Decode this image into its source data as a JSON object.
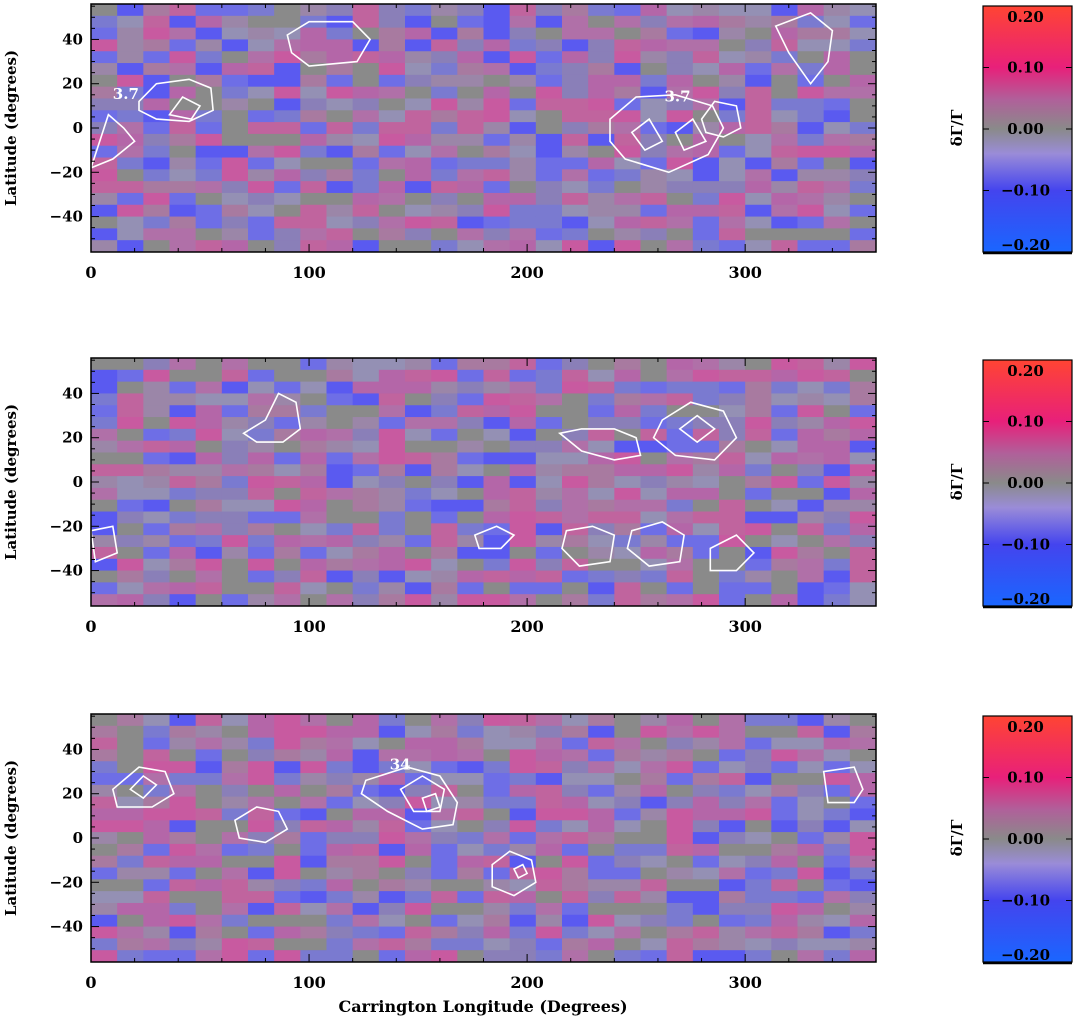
{
  "figure": {
    "xlabel": "Carrington Longitude (Degrees)",
    "colorbar_label": "δΓ/Γ"
  },
  "chart_data": [
    {
      "type": "heatmap",
      "panel": 1,
      "title": "",
      "xlabel": "",
      "ylabel": "Latitude (degrees)",
      "xlim": [
        0,
        360
      ],
      "ylim": [
        -56,
        56
      ],
      "x_ticks": [
        "0",
        "100",
        "200",
        "300"
      ],
      "y_ticks": [
        "-40",
        "-20",
        "0",
        "20",
        "40"
      ],
      "grid": "30 x 21 pixel map, ~12° longitude x ~5.3° latitude cells",
      "contour_labels": [
        {
          "text": "3.7",
          "lon": 10,
          "lat": 13
        },
        {
          "text": "3.7",
          "lon": 263,
          "lat": 12
        }
      ],
      "colorbar": {
        "min": -0.2,
        "max": 0.2,
        "ticks": [
          "0.20",
          "0.10",
          "0.00",
          "-0.10",
          "-0.20"
        ],
        "label": "δΓ/Γ"
      }
    },
    {
      "type": "heatmap",
      "panel": 2,
      "title": "",
      "xlabel": "",
      "ylabel": "Latitude (degrees)",
      "xlim": [
        0,
        360
      ],
      "ylim": [
        -56,
        56
      ],
      "x_ticks": [
        "0",
        "100",
        "200",
        "300"
      ],
      "y_ticks": [
        "-40",
        "-20",
        "0",
        "20",
        "40"
      ],
      "grid": "30 x 21 pixel map, ~12° longitude x ~5.3° latitude cells",
      "contour_labels": [],
      "colorbar": {
        "min": -0.2,
        "max": 0.2,
        "ticks": [
          "0.20",
          "0.10",
          "0.00",
          "-0.10",
          "-0.20"
        ],
        "label": "δΓ/Γ"
      }
    },
    {
      "type": "heatmap",
      "panel": 3,
      "title": "",
      "xlabel": "Carrington Longitude (Degrees)",
      "ylabel": "Latitude (degrees)",
      "xlim": [
        0,
        360
      ],
      "ylim": [
        -56,
        56
      ],
      "x_ticks": [
        "0",
        "100",
        "200",
        "300"
      ],
      "y_ticks": [
        "-40",
        "-20",
        "0",
        "20",
        "40"
      ],
      "grid": "30 x 21 pixel map, ~12° longitude x ~5.3° latitude cells",
      "contour_labels": [
        {
          "text": "34",
          "lon": 137,
          "lat": 31
        }
      ],
      "colorbar": {
        "min": -0.2,
        "max": 0.2,
        "ticks": [
          "0.20",
          "0.10",
          "0.00",
          "-0.10",
          "-0.20"
        ],
        "label": "δΓ/Γ"
      }
    }
  ]
}
